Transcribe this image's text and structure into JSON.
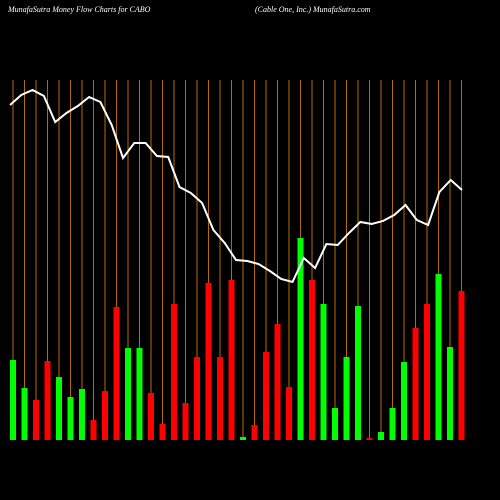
{
  "chart_data": {
    "type": "bar",
    "title": "MunafaSutra  Money  Flow  Charts for CABO",
    "subtitle": "(Cable   One,  Inc.) MunafaSutra.com",
    "background": "#000000",
    "separator_color": "#b36b00",
    "ylim": [
      0,
      360
    ],
    "bars": {
      "values": [
        80,
        52,
        40,
        79,
        63,
        43,
        51,
        20,
        49,
        133,
        92,
        92,
        47,
        16,
        136,
        37,
        83,
        157,
        83,
        160,
        3,
        15,
        88,
        116,
        53,
        202,
        160,
        136,
        32,
        83,
        134,
        2,
        8,
        32,
        78,
        112,
        136,
        166,
        93,
        149
      ],
      "colors": [
        "#00ff00",
        "#00ff00",
        "#ff0000",
        "#ff0000",
        "#00ff00",
        "#00ff00",
        "#00ff00",
        "#ff0000",
        "#ff0000",
        "#ff0000",
        "#00ff00",
        "#00ff00",
        "#ff0000",
        "#ff0000",
        "#ff0000",
        "#ff0000",
        "#ff0000",
        "#ff0000",
        "#ff0000",
        "#ff0000",
        "#00ff00",
        "#ff0000",
        "#ff0000",
        "#ff0000",
        "#ff0000",
        "#00ff00",
        "#ff0000",
        "#00ff00",
        "#00ff00",
        "#00ff00",
        "#00ff00",
        "#ff0000",
        "#00ff00",
        "#00ff00",
        "#00ff00",
        "#ff0000",
        "#ff0000",
        "#00ff00",
        "#00ff00",
        "#ff0000"
      ]
    },
    "line": {
      "color": "#ffffff",
      "values": [
        335,
        345,
        350,
        344,
        318,
        327,
        334,
        343,
        338,
        315,
        282,
        297,
        297,
        284,
        283,
        253,
        247,
        237,
        210,
        197,
        180,
        179,
        176,
        169,
        161,
        158,
        182,
        172,
        196,
        195,
        207,
        218,
        216,
        219,
        225,
        235,
        220,
        215,
        248,
        260,
        250
      ]
    }
  }
}
